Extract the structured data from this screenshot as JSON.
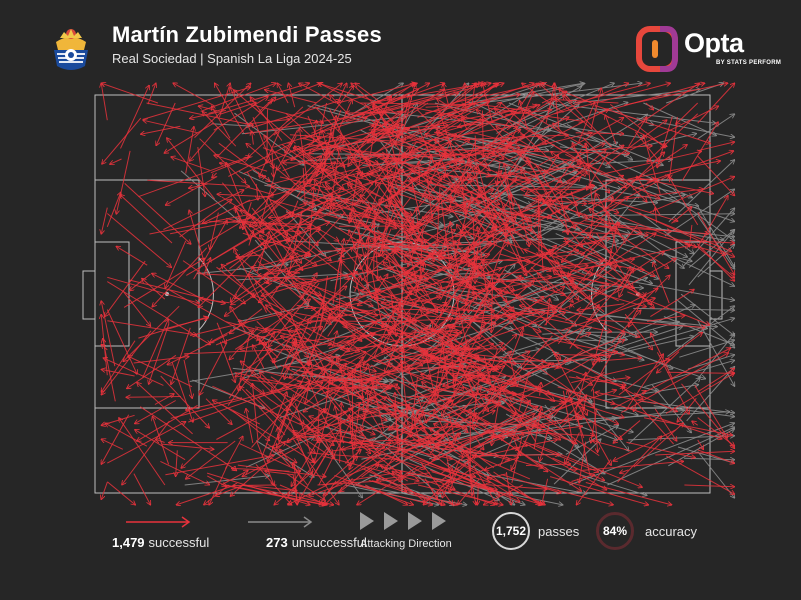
{
  "header": {
    "title": "Martín Zubimendi Passes",
    "subtitle": "Real Sociedad | Spanish La Liga 2024-25",
    "logo_word": "Opta",
    "logo_sub": "BY STATS PERFORM",
    "crest_icon": "real-sociedad-crest",
    "opta_icon": "opta-logo"
  },
  "colors": {
    "background": "#262626",
    "successful": "#e8323c",
    "unsuccessful": "#8a8a8a",
    "pitch_lines": "#bdbdbd",
    "opta_brand": "#e7473c"
  },
  "legend": {
    "successful": {
      "count": "1,479",
      "label": "successful"
    },
    "unsuccessful": {
      "count": "273",
      "label": "unsuccessful"
    },
    "direction_label": "Attacking Direction",
    "passes": {
      "value": "1,752",
      "label": "passes"
    },
    "accuracy": {
      "value": "84%",
      "label": "accuracy",
      "fraction": 0.84
    }
  },
  "chart_data": {
    "type": "pass-map",
    "pitch": {
      "length": 100,
      "width": 100,
      "attacking_direction": "left-to-right"
    },
    "series": [
      {
        "name": "successful",
        "count": 1479
      },
      {
        "name": "unsuccessful",
        "count": 273
      }
    ],
    "totals": {
      "passes": 1752,
      "accuracy_pct": 84
    }
  }
}
